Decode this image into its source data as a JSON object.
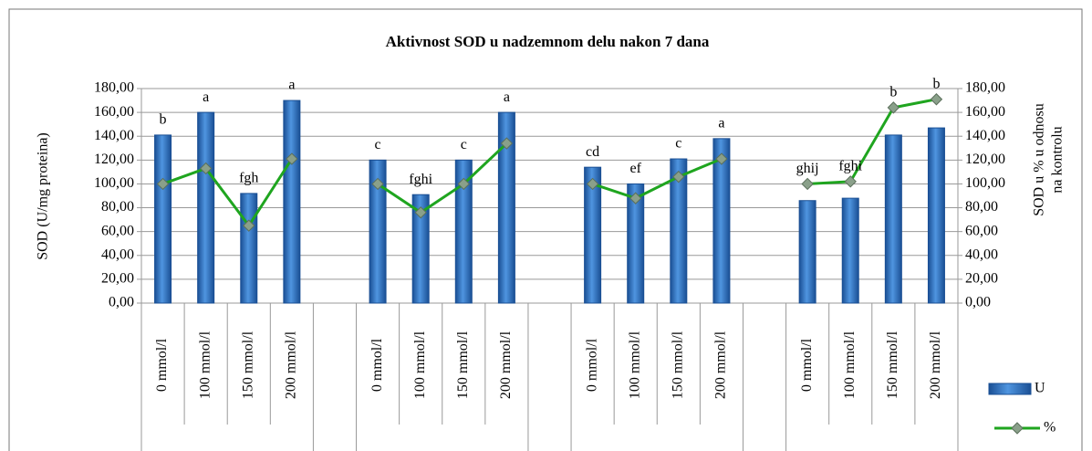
{
  "chart_data": {
    "type": "bar_line",
    "title": "Aktivnost  SOD u nadzemnom delu nakon 7 dana",
    "y_label": "SOD (U/mg proteina)",
    "y2_label": [
      "SOD u % u odnosu",
      "na kontrolu"
    ],
    "categories": [
      "0 mmol/l",
      "100 mmol/l",
      "150 mmol/l",
      "200 mmol/l",
      null,
      "0 mmol/l",
      "100 mmol/l",
      "150 mmol/l",
      "200 mmol/l",
      null,
      "0 mmol/l",
      "100 mmol/l",
      "150 mmol/l",
      "200 mmol/l",
      null,
      "0 mmol/l",
      "100 mmol/l",
      "150 mmol/l",
      "200 mmol/l"
    ],
    "series": [
      {
        "name": "U",
        "color": "#2a6fc4",
        "values": [
          141,
          160,
          92,
          170,
          null,
          120,
          91,
          120,
          160,
          null,
          114,
          100,
          121,
          138,
          null,
          86,
          88,
          141,
          147
        ]
      },
      {
        "name": "%",
        "color": "#1fa51f",
        "axis": "y2",
        "values": [
          100,
          113,
          65,
          121,
          null,
          100,
          76,
          100,
          134,
          null,
          100,
          88,
          106,
          121,
          null,
          100,
          102,
          164,
          171
        ]
      }
    ],
    "annotations": [
      "b",
      "a",
      "fgh",
      "a",
      null,
      "c",
      "fghi",
      "c",
      "a",
      null,
      "cd",
      "ef",
      "c",
      "a",
      null,
      "ghij",
      "fghi",
      "b",
      "b"
    ],
    "ylim": [
      0,
      180
    ],
    "yticks": [
      {
        "value": 0,
        "label": "0,00"
      },
      {
        "value": 20,
        "label": "20,00"
      },
      {
        "value": 40,
        "label": "40,00"
      },
      {
        "value": 60,
        "label": "60,00"
      },
      {
        "value": 80,
        "label": "80,00"
      },
      {
        "value": 100,
        "label": "100,00"
      },
      {
        "value": 120,
        "label": "120,00"
      },
      {
        "value": 140,
        "label": "140,00"
      },
      {
        "value": 160,
        "label": "160,00"
      },
      {
        "value": 180,
        "label": "180,00"
      }
    ],
    "y2lim": [
      0,
      180
    ],
    "y2ticks": [
      {
        "value": 0,
        "label": "0,00"
      },
      {
        "value": 20,
        "label": "20,00"
      },
      {
        "value": 40,
        "label": "40,00"
      },
      {
        "value": 60,
        "label": "60,00"
      },
      {
        "value": 80,
        "label": "80,00"
      },
      {
        "value": 100,
        "label": "100,00"
      },
      {
        "value": 120,
        "label": "120,00"
      },
      {
        "value": 140,
        "label": "140,00"
      },
      {
        "value": 160,
        "label": "160,00"
      },
      {
        "value": 180,
        "label": "180,00"
      }
    ],
    "grid": true,
    "legend": "lower right"
  }
}
